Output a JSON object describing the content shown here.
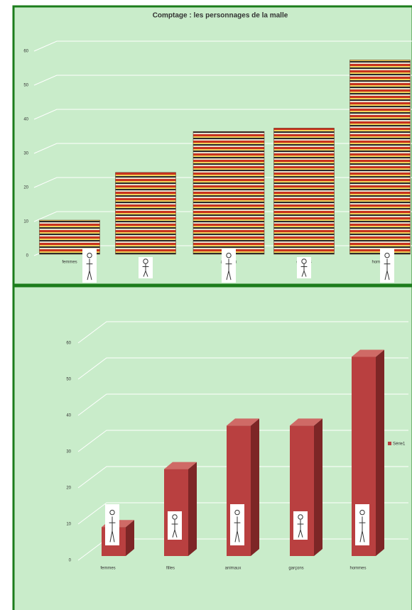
{
  "chart_data": [
    {
      "type": "pictogram",
      "title": "Comptage : les personnages de  la malle",
      "categories": [
        "femmes",
        "filles",
        "animaux",
        "garçons",
        "hommes"
      ],
      "values": [
        10,
        24,
        36,
        37,
        57
      ],
      "ylim": [
        0,
        60
      ],
      "yticks": [
        0,
        10,
        20,
        30,
        40,
        50,
        60
      ],
      "grid": true
    },
    {
      "type": "bar3d",
      "categories": [
        "femmes",
        "filles",
        "animaux",
        "garçons",
        "hommes"
      ],
      "series": [
        {
          "name": "Série1",
          "color": "#b94040",
          "values": [
            8,
            24,
            36,
            36,
            55
          ]
        }
      ],
      "ylim": [
        0,
        60
      ],
      "yticks": [
        0,
        10,
        20,
        30,
        40,
        50,
        60
      ],
      "grid": true,
      "legend": "right"
    }
  ]
}
